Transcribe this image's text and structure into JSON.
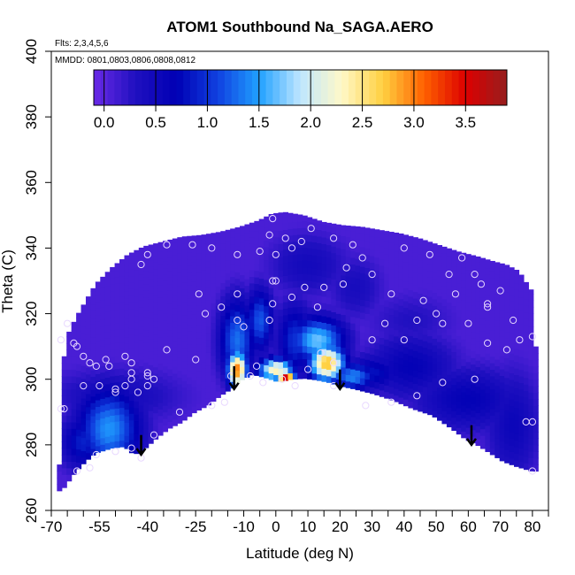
{
  "chart_data": {
    "type": "heatmap",
    "title": "ATOM1 Southbound Na_SAGA.AERO",
    "subtitle_flights": "Flts: 2,3,4,5,6",
    "subtitle_dates": "MMDD: 0801,0803,0806,0808,0812",
    "xlabel": "Latitude (deg N)",
    "ylabel": "Theta (C)",
    "xlim": [
      -70,
      85
    ],
    "ylim": [
      260,
      400
    ],
    "x_ticks": [
      -70,
      -65,
      -60,
      -55,
      -50,
      -45,
      -40,
      -35,
      -30,
      -25,
      -20,
      -15,
      -10,
      -5,
      0,
      5,
      10,
      15,
      20,
      25,
      30,
      35,
      40,
      45,
      50,
      55,
      60,
      65,
      70,
      75,
      80,
      85
    ],
    "x_tick_labels": [
      "-70",
      "-55",
      "-40",
      "-25",
      "-10",
      "0",
      "10",
      "20",
      "30",
      "40",
      "50",
      "60",
      "70",
      "80"
    ],
    "x_tick_label_values": [
      -70,
      -55,
      -40,
      -25,
      -10,
      0,
      10,
      20,
      30,
      40,
      50,
      60,
      70,
      80
    ],
    "y_ticks": [
      260,
      280,
      300,
      320,
      340,
      360,
      380,
      400
    ],
    "y_tick_labels": [
      "260",
      "280",
      "300",
      "320",
      "340",
      "360",
      "380",
      "400"
    ],
    "colorbar": {
      "range": [
        -0.1,
        3.9
      ],
      "tick_values": [
        0.0,
        0.5,
        1.0,
        1.5,
        2.0,
        2.5,
        3.0,
        3.5
      ],
      "tick_labels": [
        "0.0",
        "0.5",
        "1.0",
        "1.5",
        "2.0",
        "2.5",
        "3.0",
        "3.5"
      ],
      "colors": [
        "#6a2ae6",
        "#2010c0",
        "#0000b4",
        "#1040e0",
        "#20a0ff",
        "#bfe6ff",
        "#fff8c8",
        "#ffd040",
        "#ff6000",
        "#dc0000",
        "#961e1e"
      ]
    },
    "lower_boundary": [
      [
        -67.5,
        266
      ],
      [
        -66,
        268
      ],
      [
        -63,
        272
      ],
      [
        -60,
        275
      ],
      [
        -57,
        277.5
      ],
      [
        -52,
        279
      ],
      [
        -48,
        279.5
      ],
      [
        -45,
        277
      ],
      [
        -42,
        278.5
      ],
      [
        -38,
        282
      ],
      [
        -34,
        285
      ],
      [
        -30,
        287
      ],
      [
        -26,
        290
      ],
      [
        -22,
        292
      ],
      [
        -18,
        295
      ],
      [
        -14,
        297.5
      ],
      [
        -12,
        299.5
      ],
      [
        -8,
        301.5
      ],
      [
        -4,
        300.5
      ],
      [
        0,
        299.2
      ],
      [
        4,
        300
      ],
      [
        8,
        300.3
      ],
      [
        12,
        299.8
      ],
      [
        16,
        299
      ],
      [
        19,
        298
      ],
      [
        24,
        297
      ],
      [
        30,
        295.5
      ],
      [
        36,
        293.5
      ],
      [
        42,
        291
      ],
      [
        48,
        289
      ],
      [
        54,
        285
      ],
      [
        58,
        282
      ],
      [
        62,
        280
      ],
      [
        66,
        277.5
      ],
      [
        70,
        275
      ],
      [
        74,
        273.5
      ],
      [
        79,
        272
      ]
    ],
    "upper_boundary": [
      [
        -67.5,
        266
      ],
      [
        -68,
        274
      ],
      [
        -67.5,
        291
      ],
      [
        -67,
        305
      ],
      [
        -66,
        313
      ],
      [
        -63,
        319
      ],
      [
        -60,
        324
      ],
      [
        -57,
        329
      ],
      [
        -52,
        334
      ],
      [
        -47,
        338
      ],
      [
        -42,
        340.5
      ],
      [
        -36,
        342
      ],
      [
        -30,
        343.5
      ],
      [
        -24,
        344
      ],
      [
        -18,
        345
      ],
      [
        -12,
        346.5
      ],
      [
        -6,
        348.5
      ],
      [
        -2,
        350.5
      ],
      [
        2,
        351
      ],
      [
        8,
        350
      ],
      [
        14,
        348
      ],
      [
        20,
        347
      ],
      [
        26,
        346.5
      ],
      [
        32,
        345.5
      ],
      [
        38,
        344.5
      ],
      [
        44,
        343
      ],
      [
        50,
        341
      ],
      [
        56,
        339
      ],
      [
        62,
        337.5
      ],
      [
        67,
        336
      ],
      [
        71,
        335
      ],
      [
        75,
        333
      ],
      [
        79,
        327
      ],
      [
        80,
        320
      ],
      [
        80.5,
        300
      ],
      [
        80.5,
        272
      ]
    ],
    "field_features": [
      {
        "lon": -52,
        "theta": 285,
        "value": 1.45,
        "sx": 7,
        "sy": 9
      },
      {
        "lon": -60,
        "theta": 281,
        "value": 0.9,
        "sx": 5,
        "sy": 6
      },
      {
        "lon": -50,
        "theta": 295,
        "value": 0.45,
        "sx": 15,
        "sy": 6
      },
      {
        "lon": -12,
        "theta": 303,
        "value": 3.0,
        "sx": 2.2,
        "sy": 4
      },
      {
        "lon": -12,
        "theta": 312,
        "value": 1.3,
        "sx": 4,
        "sy": 9
      },
      {
        "lon": -5,
        "theta": 318,
        "value": 1.2,
        "sx": 3,
        "sy": 7
      },
      {
        "lon": 0,
        "theta": 303,
        "value": 2.4,
        "sx": 4,
        "sy": 2.5
      },
      {
        "lon": 3,
        "theta": 301,
        "value": 3.6,
        "sx": 2,
        "sy": 1.5
      },
      {
        "lon": 6,
        "theta": 312,
        "value": 1.0,
        "sx": 4,
        "sy": 8
      },
      {
        "lon": 16,
        "theta": 305,
        "value": 2.8,
        "sx": 4,
        "sy": 4
      },
      {
        "lon": 13,
        "theta": 312,
        "value": 1.7,
        "sx": 6,
        "sy": 5
      },
      {
        "lon": 24,
        "theta": 301,
        "value": 1.4,
        "sx": 5,
        "sy": 3
      },
      {
        "lon": 30,
        "theta": 302,
        "value": 0.8,
        "sx": 7,
        "sy": 4
      },
      {
        "lon": 42,
        "theta": 304,
        "value": 0.65,
        "sx": 10,
        "sy": 7
      },
      {
        "lon": 60,
        "theta": 294,
        "value": 0.65,
        "sx": 12,
        "sy": 7
      },
      {
        "lon": 74,
        "theta": 286,
        "value": 0.55,
        "sx": 6,
        "sy": 12
      },
      {
        "lon": 10,
        "theta": 335,
        "value": 0.45,
        "sx": 9,
        "sy": 7
      },
      {
        "lon": 25,
        "theta": 328,
        "value": 0.4,
        "sx": 6,
        "sy": 7
      },
      {
        "lon": 42,
        "theta": 318,
        "value": 0.3,
        "sx": 10,
        "sy": 6
      }
    ],
    "sample_points": [
      [
        -67,
        291
      ],
      [
        -66,
        291
      ],
      [
        -67,
        312
      ],
      [
        -65,
        317
      ],
      [
        -63,
        311
      ],
      [
        -62,
        310
      ],
      [
        -58,
        305
      ],
      [
        -56,
        304
      ],
      [
        -52,
        304
      ],
      [
        -53,
        306
      ],
      [
        -47,
        307
      ],
      [
        -45,
        305
      ],
      [
        -45,
        302
      ],
      [
        -47,
        298
      ],
      [
        -50,
        297
      ],
      [
        -55,
        298
      ],
      [
        -60,
        298
      ],
      [
        -43,
        296
      ],
      [
        -40,
        298
      ],
      [
        -38,
        300
      ],
      [
        -40,
        301
      ],
      [
        -34,
        309
      ],
      [
        -42,
        335
      ],
      [
        -40,
        338
      ],
      [
        -34,
        341
      ],
      [
        -26,
        341
      ],
      [
        -20,
        340
      ],
      [
        -5,
        339
      ],
      [
        0,
        338
      ],
      [
        -12,
        326
      ],
      [
        -1,
        330
      ],
      [
        0,
        330
      ],
      [
        -24,
        326
      ],
      [
        -22,
        320
      ],
      [
        -17,
        322
      ],
      [
        -12,
        318
      ],
      [
        -25,
        306
      ],
      [
        -10,
        316
      ],
      [
        -2,
        318
      ],
      [
        -1,
        323
      ],
      [
        5,
        325
      ],
      [
        9,
        328
      ],
      [
        15,
        328
      ],
      [
        13,
        322
      ],
      [
        21,
        329
      ],
      [
        22,
        334
      ],
      [
        27,
        337
      ],
      [
        24,
        341
      ],
      [
        18,
        343
      ],
      [
        11,
        346
      ],
      [
        8,
        342
      ],
      [
        3,
        343
      ],
      [
        -1,
        349
      ],
      [
        -2,
        344
      ],
      [
        -12,
        338
      ],
      [
        40,
        340
      ],
      [
        48,
        338
      ],
      [
        58,
        337
      ],
      [
        54,
        332
      ],
      [
        62,
        332
      ],
      [
        64,
        329
      ],
      [
        70,
        327
      ],
      [
        66,
        323
      ],
      [
        50,
        320
      ],
      [
        44,
        318
      ],
      [
        34,
        317
      ],
      [
        30,
        312
      ],
      [
        40,
        312
      ],
      [
        52,
        317
      ],
      [
        60,
        317
      ],
      [
        66,
        311
      ],
      [
        72,
        309
      ],
      [
        76,
        312
      ],
      [
        80,
        313
      ],
      [
        62,
        300
      ],
      [
        52,
        299
      ],
      [
        44,
        295
      ],
      [
        36,
        293
      ],
      [
        28,
        292
      ],
      [
        18,
        298
      ],
      [
        6,
        298
      ],
      [
        2,
        300
      ],
      [
        -4,
        299
      ],
      [
        -8,
        301
      ],
      [
        -14,
        301
      ],
      [
        -16,
        293
      ],
      [
        -20,
        292
      ],
      [
        -30,
        290
      ],
      [
        -38,
        283
      ],
      [
        -45,
        279
      ],
      [
        -50,
        278
      ],
      [
        -56,
        277
      ],
      [
        -42,
        276
      ],
      [
        78,
        287
      ],
      [
        80,
        287
      ],
      [
        80,
        272
      ],
      [
        -58,
        273
      ],
      [
        -62,
        272
      ],
      [
        -50,
        296
      ],
      [
        -45,
        300
      ],
      [
        -40,
        302
      ],
      [
        14,
        308
      ],
      [
        18,
        305
      ],
      [
        10,
        303
      ],
      [
        -6,
        304
      ],
      [
        5,
        340
      ],
      [
        30,
        332
      ],
      [
        36,
        326
      ],
      [
        46,
        324
      ],
      [
        56,
        326
      ],
      [
        66,
        322
      ],
      [
        74,
        318
      ],
      [
        -60,
        307
      ]
    ],
    "annotation_arrows": [
      {
        "lon": -42,
        "theta_top": 283,
        "theta_bottom": 277
      },
      {
        "lon": -13,
        "theta_top": 304,
        "theta_bottom": 297
      },
      {
        "lon": 20,
        "theta_top": 303,
        "theta_bottom": 297
      },
      {
        "lon": 61,
        "theta_top": 286,
        "theta_bottom": 280
      }
    ]
  }
}
